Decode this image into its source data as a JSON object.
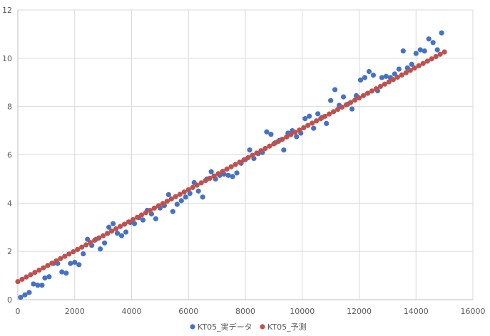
{
  "chart_data": {
    "type": "scatter",
    "xlim": [
      0,
      16000
    ],
    "ylim": [
      0,
      12
    ],
    "x_ticks": [
      0,
      2000,
      4000,
      6000,
      8000,
      10000,
      12000,
      14000,
      16000
    ],
    "y_ticks": [
      0,
      2,
      4,
      6,
      8,
      10,
      12
    ],
    "x_tick_labels": [
      "0",
      "2000",
      "4000",
      "6000",
      "8000",
      "10000",
      "12000",
      "14000",
      "16000"
    ],
    "y_tick_labels": [
      "0",
      "2",
      "4",
      "6",
      "8",
      "10",
      "12"
    ],
    "grid": true,
    "legend_position": "bottom",
    "series": [
      {
        "name": "KT05_実データ",
        "color": "#4472c4",
        "points": [
          [
            100,
            0.1
          ],
          [
            250,
            0.2
          ],
          [
            400,
            0.3
          ],
          [
            550,
            0.65
          ],
          [
            700,
            0.6
          ],
          [
            850,
            0.6
          ],
          [
            950,
            0.9
          ],
          [
            1100,
            0.95
          ],
          [
            1250,
            1.5
          ],
          [
            1400,
            1.5
          ],
          [
            1550,
            1.15
          ],
          [
            1700,
            1.1
          ],
          [
            1850,
            1.5
          ],
          [
            2000,
            1.55
          ],
          [
            2150,
            1.45
          ],
          [
            2300,
            1.9
          ],
          [
            2450,
            2.5
          ],
          [
            2600,
            2.25
          ],
          [
            2750,
            2.5
          ],
          [
            2900,
            2.1
          ],
          [
            3050,
            2.35
          ],
          [
            3200,
            3.0
          ],
          [
            3350,
            3.15
          ],
          [
            3500,
            2.75
          ],
          [
            3650,
            2.65
          ],
          [
            3800,
            2.8
          ],
          [
            3950,
            3.2
          ],
          [
            4100,
            3.15
          ],
          [
            4250,
            3.4
          ],
          [
            4400,
            3.3
          ],
          [
            4550,
            3.7
          ],
          [
            4700,
            3.55
          ],
          [
            4850,
            3.35
          ],
          [
            5000,
            3.8
          ],
          [
            5150,
            3.9
          ],
          [
            5300,
            4.35
          ],
          [
            5450,
            3.65
          ],
          [
            5600,
            3.95
          ],
          [
            5750,
            4.1
          ],
          [
            5900,
            4.25
          ],
          [
            6050,
            4.4
          ],
          [
            6200,
            4.85
          ],
          [
            6350,
            4.5
          ],
          [
            6500,
            4.25
          ],
          [
            6650,
            5.0
          ],
          [
            6800,
            5.3
          ],
          [
            6950,
            5.0
          ],
          [
            7100,
            5.15
          ],
          [
            7250,
            5.2
          ],
          [
            7400,
            5.15
          ],
          [
            7550,
            5.1
          ],
          [
            7700,
            5.25
          ],
          [
            7850,
            5.65
          ],
          [
            8000,
            5.8
          ],
          [
            8150,
            6.2
          ],
          [
            8300,
            5.85
          ],
          [
            8450,
            6.05
          ],
          [
            8600,
            6.1
          ],
          [
            8750,
            6.95
          ],
          [
            8900,
            6.85
          ],
          [
            9050,
            6.5
          ],
          [
            9200,
            6.6
          ],
          [
            9350,
            6.2
          ],
          [
            9500,
            6.9
          ],
          [
            9650,
            7.0
          ],
          [
            9800,
            6.75
          ],
          [
            9950,
            6.9
          ],
          [
            10100,
            7.5
          ],
          [
            10250,
            7.6
          ],
          [
            10400,
            7.1
          ],
          [
            10550,
            7.7
          ],
          [
            10700,
            7.55
          ],
          [
            10850,
            7.3
          ],
          [
            11000,
            8.25
          ],
          [
            11150,
            8.7
          ],
          [
            11300,
            8.05
          ],
          [
            11450,
            8.4
          ],
          [
            11600,
            8.1
          ],
          [
            11750,
            7.9
          ],
          [
            11900,
            8.45
          ],
          [
            12050,
            9.1
          ],
          [
            12200,
            9.2
          ],
          [
            12350,
            9.45
          ],
          [
            12500,
            9.3
          ],
          [
            12650,
            8.65
          ],
          [
            12800,
            9.2
          ],
          [
            12950,
            9.25
          ],
          [
            13100,
            9.2
          ],
          [
            13250,
            9.35
          ],
          [
            13400,
            9.55
          ],
          [
            13550,
            10.3
          ],
          [
            13700,
            9.6
          ],
          [
            13850,
            9.75
          ],
          [
            14000,
            10.2
          ],
          [
            14150,
            10.35
          ],
          [
            14300,
            10.3
          ],
          [
            14450,
            10.8
          ],
          [
            14600,
            10.65
          ],
          [
            14750,
            10.35
          ],
          [
            14900,
            11.05
          ]
        ]
      },
      {
        "name": "KT05_予測",
        "color": "#c0504d",
        "line": {
          "x_start": 0,
          "x_end": 15000,
          "step": 150,
          "y_intercept": 0.75,
          "slope": 0.000634
        }
      }
    ]
  }
}
